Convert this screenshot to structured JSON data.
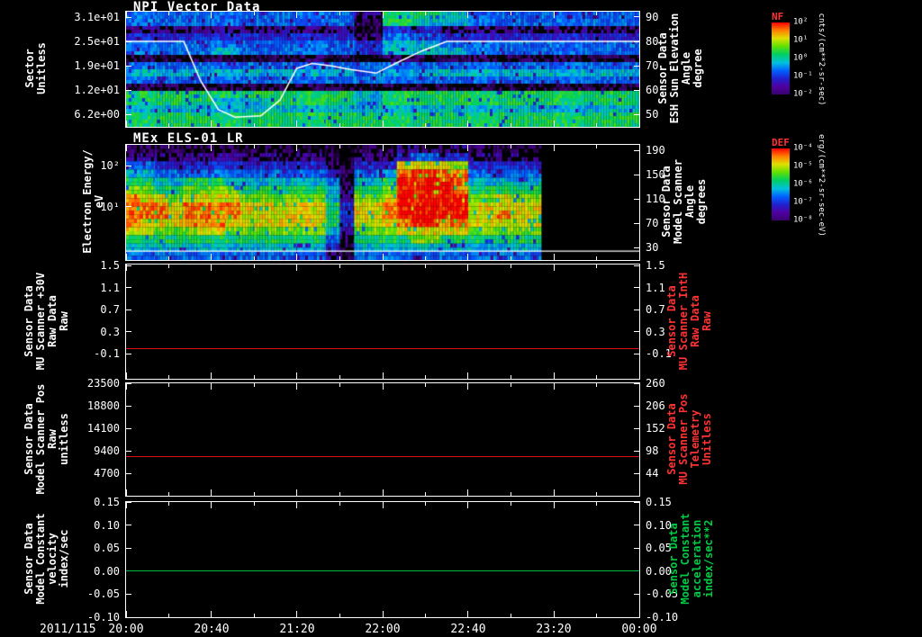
{
  "meta": {
    "background": "#000000",
    "foreground": "#ffffff",
    "red_accent": "#ff3333",
    "green_accent": "#00cc44"
  },
  "chart_data": {
    "type": "heatmap",
    "description": "Five stacked time-series panels: two spectrograms (heatmaps) with overlay lines and three flat line plots",
    "x_axis": {
      "date_label": "2011/115",
      "tick_labels": [
        "20:00",
        "20:40",
        "21:20",
        "22:00",
        "22:40",
        "23:20",
        "00:00"
      ],
      "tick_hours": [
        0,
        0.6667,
        1.3333,
        2,
        2.6667,
        3.3333,
        4
      ],
      "range_hours": [
        0,
        4
      ]
    },
    "npi": {
      "title": "NPI Vector Data",
      "left_axis": {
        "label": "Sector\nUnitless",
        "tick_labels": [
          "3.1e+01",
          "2.5e+01",
          "1.9e+01",
          "1.2e+01",
          "6.2e+00"
        ],
        "tick_values": [
          31,
          24.8,
          18.6,
          12.4,
          6.2
        ],
        "range": [
          32.4,
          3.0
        ]
      },
      "right_axis": {
        "label": "Sensor Data\nESH Sun Elevation\nAngle\ndegree",
        "tick_labels": [
          "90",
          "80",
          "70",
          "60",
          "50"
        ],
        "tick_values": [
          90,
          80,
          70,
          60,
          50
        ],
        "range": [
          92.2,
          45
        ]
      },
      "colorbar": {
        "label": "NF",
        "unit": "cnts/(cm**2-sr-sec)",
        "tick_labels": [
          "10²",
          "10¹",
          "10⁰",
          "10⁻¹",
          "10⁻²"
        ]
      },
      "overlay_line": {
        "name": "sun-elevation-angle",
        "color": "#ffffff",
        "points": [
          [
            0,
            80
          ],
          [
            0.45,
            80
          ],
          [
            0.58,
            64
          ],
          [
            0.72,
            52
          ],
          [
            0.85,
            49
          ],
          [
            1.05,
            49.5
          ],
          [
            1.2,
            56
          ],
          [
            1.33,
            69
          ],
          [
            1.45,
            71
          ],
          [
            1.6,
            70
          ],
          [
            1.75,
            68.5
          ],
          [
            1.95,
            67
          ],
          [
            2.1,
            71
          ],
          [
            2.3,
            76
          ],
          [
            2.5,
            80
          ],
          [
            4,
            80
          ]
        ]
      },
      "spectrogram": {
        "rows": 16,
        "cols": 18,
        "intensity_scale": "0=black 2=purple 4=blue 5-6=cyan 7=green 8=yellow 10=red, -1=no data",
        "values": [
          [
            4,
            4,
            4,
            4,
            4,
            4,
            4,
            4,
            2,
            6,
            6,
            5,
            4,
            4,
            4,
            4,
            4,
            4
          ],
          [
            4,
            4,
            4,
            4,
            4,
            4,
            4,
            4,
            1,
            6,
            5,
            5,
            4,
            4,
            4,
            4,
            4,
            4
          ],
          [
            2,
            2,
            2,
            2,
            2,
            2,
            2,
            2,
            1,
            3,
            3,
            2,
            2,
            2,
            2,
            2,
            2,
            2
          ],
          [
            3,
            3,
            3,
            3,
            3,
            3,
            3,
            3,
            2,
            4,
            4,
            3,
            3,
            3,
            3,
            3,
            3,
            3
          ],
          [
            4,
            4,
            4,
            4,
            4,
            4,
            4,
            4,
            3,
            5,
            5,
            4,
            4,
            4,
            4,
            4,
            4,
            4
          ],
          [
            4,
            4,
            4,
            5,
            4,
            4,
            4,
            4,
            3,
            5,
            5,
            5,
            4,
            4,
            4,
            4,
            4,
            4
          ],
          [
            1,
            1,
            1,
            1,
            1,
            1,
            1,
            1,
            0,
            1,
            1,
            1,
            1,
            1,
            1,
            1,
            1,
            1
          ],
          [
            4,
            4,
            4,
            4,
            4,
            4,
            4,
            4,
            4,
            4,
            4,
            4,
            4,
            4,
            4,
            4,
            4,
            4
          ],
          [
            5,
            5,
            5,
            5,
            5,
            5,
            5,
            5,
            4,
            5,
            5,
            5,
            5,
            5,
            5,
            5,
            5,
            5
          ],
          [
            4,
            4,
            4,
            4,
            4,
            4,
            4,
            4,
            4,
            4,
            4,
            4,
            4,
            4,
            4,
            4,
            4,
            4
          ],
          [
            1,
            1,
            1,
            1,
            1,
            1,
            1,
            1,
            1,
            1,
            1,
            1,
            1,
            1,
            1,
            1,
            1,
            1
          ],
          [
            6,
            6,
            6,
            6,
            6,
            6,
            6,
            6,
            5,
            6,
            6,
            6,
            6,
            6,
            6,
            6,
            6,
            6
          ],
          [
            6,
            6,
            6,
            5,
            5,
            6,
            6,
            6,
            5,
            6,
            6,
            6,
            6,
            6,
            6,
            6,
            6,
            6
          ],
          [
            5,
            5,
            5,
            5,
            5,
            5,
            5,
            5,
            5,
            5,
            5,
            5,
            5,
            5,
            5,
            5,
            5,
            5
          ],
          [
            6,
            6,
            6,
            6,
            6,
            6,
            6,
            6,
            6,
            6,
            6,
            6,
            6,
            6,
            6,
            6,
            6,
            6
          ],
          [
            6,
            6,
            6,
            6,
            6,
            6,
            6,
            6,
            6,
            6,
            6,
            6,
            6,
            6,
            6,
            6,
            6,
            6
          ]
        ]
      }
    },
    "els": {
      "title": "MEx ELS-01 LR",
      "left_axis": {
        "label": "Electron Energy/\neV",
        "tick_labels": [
          "10²",
          "10¹"
        ],
        "tick_values": [
          100,
          10
        ],
        "range": [
          320,
          0.5
        ],
        "log": true
      },
      "right_axis": {
        "label": "Sensor Data\nModel Scanner\nAngle\ndegrees",
        "tick_labels": [
          "190",
          "150",
          "110",
          "70",
          "30"
        ],
        "tick_values": [
          190,
          150,
          110,
          70,
          30
        ],
        "range": [
          198.9,
          9.3
        ]
      },
      "colorbar": {
        "label": "DEF",
        "unit": "erg/(cm**2-sr-sec-eV)",
        "tick_labels": [
          "10⁻⁴",
          "10⁻⁵",
          "10⁻⁶",
          "10⁻⁷",
          "10⁻⁸"
        ]
      },
      "overlay_line": {
        "name": "scanner-angle-constant",
        "color": "#ffffff",
        "value": 24
      },
      "spectrogram": {
        "rows": 14,
        "cols": 36,
        "intensity_scale": "0=black 4=blue 5=cyan 6=green 8=yellow 9=orange 10=red, -1=no data after ~23:07",
        "values": [
          [
            1,
            1,
            1,
            1,
            1,
            1,
            1,
            1,
            1,
            1,
            1,
            1,
            1,
            1,
            1,
            0,
            1,
            1,
            1,
            2,
            2,
            2,
            2,
            2,
            1,
            1,
            1,
            1,
            1,
            -1,
            -1,
            -1,
            -1,
            -1,
            -1,
            -1
          ],
          [
            2,
            2,
            2,
            2,
            2,
            2,
            2,
            2,
            2,
            2,
            2,
            2,
            2,
            2,
            1,
            0,
            2,
            2,
            2,
            3,
            4,
            4,
            3,
            3,
            2,
            2,
            2,
            2,
            2,
            -1,
            -1,
            -1,
            -1,
            -1,
            -1,
            -1
          ],
          [
            4,
            4,
            3,
            3,
            3,
            3,
            3,
            3,
            3,
            3,
            3,
            3,
            3,
            3,
            2,
            1,
            3,
            3,
            3,
            8,
            8,
            8,
            8,
            7,
            3,
            3,
            3,
            3,
            3,
            -1,
            -1,
            -1,
            -1,
            -1,
            -1,
            -1
          ],
          [
            5,
            5,
            4,
            4,
            4,
            4,
            4,
            4,
            4,
            4,
            4,
            4,
            4,
            4,
            3,
            1,
            4,
            4,
            5,
            9,
            10,
            10,
            9,
            9,
            4,
            4,
            4,
            4,
            4,
            -1,
            -1,
            -1,
            -1,
            -1,
            -1,
            -1
          ],
          [
            6,
            6,
            5,
            5,
            6,
            6,
            6,
            5,
            5,
            5,
            5,
            5,
            5,
            5,
            4,
            1,
            5,
            5,
            6,
            10,
            10,
            10,
            10,
            9,
            5,
            5,
            5,
            5,
            5,
            -1,
            -1,
            -1,
            -1,
            -1,
            -1,
            -1
          ],
          [
            7,
            7,
            6,
            6,
            7,
            7,
            7,
            7,
            6,
            6,
            6,
            6,
            6,
            6,
            5,
            2,
            6,
            6,
            7,
            10,
            10,
            10,
            10,
            9,
            6,
            6,
            6,
            6,
            6,
            -1,
            -1,
            -1,
            -1,
            -1,
            -1,
            -1
          ],
          [
            9,
            8,
            8,
            7,
            8,
            8,
            8,
            8,
            7,
            7,
            7,
            7,
            7,
            7,
            5,
            2,
            7,
            7,
            8,
            10,
            10,
            10,
            10,
            10,
            7,
            7,
            8,
            7,
            7,
            -1,
            -1,
            -1,
            -1,
            -1,
            -1,
            -1
          ],
          [
            9,
            9,
            9,
            8,
            9,
            9,
            9,
            9,
            8,
            8,
            8,
            8,
            8,
            8,
            6,
            3,
            8,
            8,
            9,
            10,
            10,
            10,
            10,
            10,
            8,
            8,
            8,
            8,
            8,
            -1,
            -1,
            -1,
            -1,
            -1,
            -1,
            -1
          ],
          [
            9,
            9,
            9,
            8,
            9,
            9,
            9,
            9,
            8,
            8,
            8,
            8,
            8,
            8,
            6,
            3,
            8,
            8,
            9,
            10,
            10,
            10,
            10,
            10,
            8,
            8,
            9,
            8,
            8,
            -1,
            -1,
            -1,
            -1,
            -1,
            -1,
            -1
          ],
          [
            9,
            8,
            8,
            8,
            9,
            9,
            9,
            8,
            8,
            8,
            8,
            8,
            8,
            8,
            6,
            3,
            8,
            8,
            8,
            9,
            10,
            10,
            9,
            9,
            8,
            8,
            8,
            8,
            8,
            -1,
            -1,
            -1,
            -1,
            -1,
            -1,
            -1
          ],
          [
            8,
            8,
            7,
            7,
            7,
            8,
            8,
            7,
            7,
            7,
            7,
            7,
            7,
            7,
            5,
            2,
            7,
            7,
            7,
            8,
            8,
            8,
            8,
            8,
            7,
            7,
            7,
            7,
            7,
            -1,
            -1,
            -1,
            -1,
            -1,
            -1,
            -1
          ],
          [
            6,
            6,
            6,
            6,
            6,
            6,
            6,
            6,
            6,
            6,
            6,
            6,
            6,
            6,
            4,
            2,
            6,
            6,
            6,
            6,
            7,
            7,
            6,
            6,
            6,
            6,
            6,
            6,
            6,
            -1,
            -1,
            -1,
            -1,
            -1,
            -1,
            -1
          ],
          [
            5,
            5,
            5,
            5,
            5,
            5,
            5,
            5,
            5,
            5,
            5,
            5,
            5,
            5,
            3,
            1,
            5,
            5,
            5,
            5,
            5,
            5,
            5,
            5,
            5,
            5,
            5,
            5,
            5,
            -1,
            -1,
            -1,
            -1,
            -1,
            -1,
            -1
          ],
          [
            4,
            4,
            4,
            4,
            4,
            4,
            4,
            4,
            4,
            4,
            4,
            4,
            4,
            4,
            2,
            1,
            4,
            4,
            4,
            4,
            4,
            4,
            4,
            4,
            4,
            4,
            4,
            4,
            4,
            -1,
            -1,
            -1,
            -1,
            -1,
            -1,
            -1
          ]
        ]
      }
    },
    "mu_scanner_30v": {
      "left_axis": {
        "label": "Sensor Data\nMU Scanner +30V\nRaw Data\nRaw",
        "tick_labels": [
          "1.5",
          "1.1",
          "0.7",
          "0.3",
          "-0.1"
        ],
        "tick_values": [
          1.5,
          1.1,
          0.7,
          0.3,
          -0.1
        ],
        "range": [
          1.52,
          -0.55
        ]
      },
      "right_axis": {
        "label": "Sensor Data\nMU Scanner IntH\nRaw Data\nRaw",
        "tick_labels": [
          "1.5",
          "1.1",
          "0.7",
          "0.3",
          "-0.1"
        ],
        "tick_values": [
          1.5,
          1.1,
          0.7,
          0.3,
          -0.1
        ],
        "range": [
          1.52,
          -0.55
        ]
      },
      "line": {
        "name": "mu-scanner-30v-raw",
        "color": "#dd1111",
        "value": 0.0
      }
    },
    "scanner_pos": {
      "left_axis": {
        "label": "Sensor Data\nModel Scanner Pos\nRaw\nunitless",
        "tick_labels": [
          "23500",
          "18800",
          "14100",
          "9400",
          "4700"
        ],
        "tick_values": [
          23500,
          18800,
          14100,
          9400,
          4700
        ],
        "range": [
          23500,
          0
        ]
      },
      "right_axis": {
        "label": "Sensor Data\nMU Scanner Pos\nTelemetry\nUnitless",
        "tick_labels": [
          "260",
          "206",
          "152",
          "98",
          "44"
        ],
        "tick_values": [
          260,
          206,
          152,
          98,
          44
        ],
        "range": [
          260,
          -10
        ]
      },
      "line": {
        "name": "model-scanner-pos-raw",
        "color": "#dd1111",
        "value": 8100
      }
    },
    "model_constant": {
      "left_axis": {
        "label": "Sensor Data\nModel Constant\nvelocity\nindex/sec",
        "tick_labels": [
          "0.15",
          "0.10",
          "0.05",
          "0.00",
          "-0.05",
          "-0.10"
        ],
        "tick_values": [
          0.15,
          0.1,
          0.05,
          0.0,
          -0.05,
          -0.1
        ],
        "range": [
          0.15,
          -0.1
        ]
      },
      "right_axis": {
        "label": "Sensor Data\nModel Constant\nacceleration\nindex/sec**2",
        "tick_labels": [
          "0.15",
          "0.10",
          "0.05",
          "0.00",
          "-0.05",
          "-0.10"
        ],
        "tick_values": [
          0.15,
          0.1,
          0.05,
          0.0,
          -0.05,
          -0.1
        ],
        "range": [
          0.15,
          -0.1
        ]
      },
      "line": {
        "name": "model-constant-velocity",
        "color": "#00bb44",
        "value": 0.0
      }
    }
  }
}
